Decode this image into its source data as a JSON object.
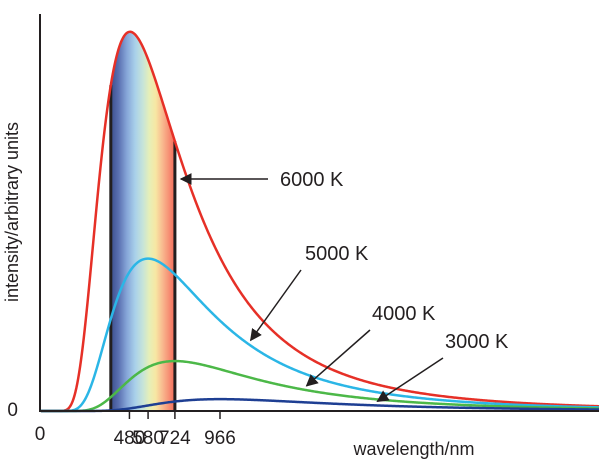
{
  "chart_data": {
    "type": "line",
    "xlabel": "wavelength/nm",
    "ylabel": "intensity/arbitrary units",
    "origin_x_label": "0",
    "origin_y_label": "0",
    "x_ticks": [
      {
        "value": 480,
        "label": "480"
      },
      {
        "value": 580,
        "label": "580"
      },
      {
        "value": 724,
        "label": "724"
      },
      {
        "value": 966,
        "label": "966"
      }
    ],
    "xlim": [
      0,
      3000
    ],
    "ylim": [
      0,
      2.0
    ],
    "visible_band": {
      "from": 380,
      "to": 724
    },
    "series": [
      {
        "name": "6000 K",
        "temperature": 6000,
        "color": "#e63027"
      },
      {
        "name": "5000 K",
        "temperature": 5000,
        "color": "#2bb6e6"
      },
      {
        "name": "4000 K",
        "temperature": 4000,
        "color": "#4cb848"
      },
      {
        "name": "3000 K",
        "temperature": 3000,
        "color": "#1e3f93"
      }
    ],
    "annotations": [
      {
        "label": "6000 K",
        "series": 0,
        "at_x": 724
      },
      {
        "label": "5000 K",
        "series": 1,
        "at_x": 1120
      },
      {
        "label": "4000 K",
        "series": 2,
        "at_x": 1420
      },
      {
        "label": "3000 K",
        "series": 3,
        "at_x": 1800
      }
    ],
    "axis_color": "#231f20"
  }
}
